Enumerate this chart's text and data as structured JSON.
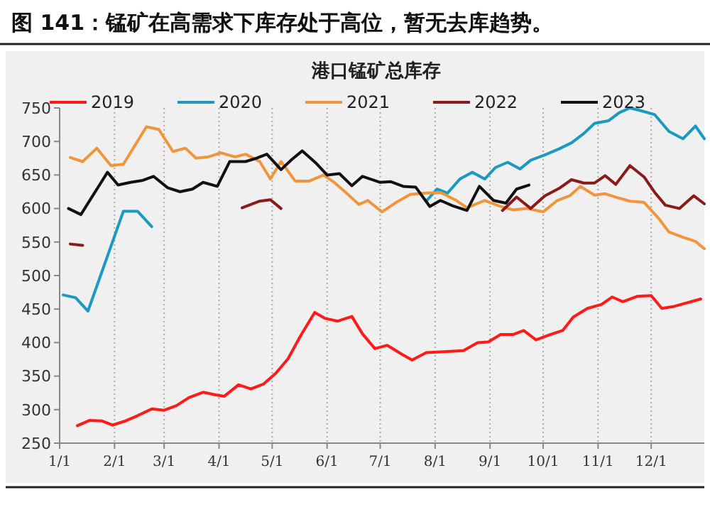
{
  "chart_data": {
    "type": "line",
    "title": "图 141：锰矿在高需求下库存处于高位，暂无去库趋势。",
    "subtitle": "港口锰矿总库存",
    "xlim": [
      "--01-01",
      "--12-31"
    ],
    "xticks": [
      {
        "value": "--01-01",
        "label": "1/1"
      },
      {
        "value": "--02-01",
        "label": "2/1"
      },
      {
        "value": "--03-01",
        "label": "3/1"
      },
      {
        "value": "--04-01",
        "label": "4/1"
      },
      {
        "value": "--05-01",
        "label": "5/1"
      },
      {
        "value": "--06-01",
        "label": "6/1"
      },
      {
        "value": "--07-01",
        "label": "7/1"
      },
      {
        "value": "--08-01",
        "label": "8/1"
      },
      {
        "value": "--09-01",
        "label": "9/1"
      },
      {
        "value": "--10-01",
        "label": "10/1"
      },
      {
        "value": "--11-01",
        "label": "11/1"
      },
      {
        "value": "--12-01",
        "label": "12/1"
      }
    ],
    "ylim": [
      250,
      750
    ],
    "yticks": [
      250,
      300,
      350,
      400,
      450,
      500,
      550,
      600,
      650,
      700,
      750
    ],
    "grid": "x",
    "legend": "top",
    "line_style": "solid",
    "marker": "none",
    "series": [
      {
        "name": "2019",
        "color": "#ff1a1a",
        "x": [
          "--01-11",
          "--01-18",
          "--01-25",
          "--01-31",
          "--02-07",
          "--02-14",
          "--02-22",
          "--03-01",
          "--03-08",
          "--03-15",
          "--03-23",
          "--03-30",
          "--04-04",
          "--04-12",
          "--04-19",
          "--04-26",
          "--05-03",
          "--05-10",
          "--05-17",
          "--05-25",
          "--05-31",
          "--06-07",
          "--06-15",
          "--06-21",
          "--06-28",
          "--07-05",
          "--07-13",
          "--07-19",
          "--07-27",
          "--08-04",
          "--08-17",
          "--08-25",
          "--08-31",
          "--09-07",
          "--09-14",
          "--09-20",
          "--09-27",
          "--10-05",
          "--10-12",
          "--10-18",
          "--10-26",
          "--11-03",
          "--11-09",
          "--11-15",
          "--11-23",
          "--12-01",
          "--12-07",
          "--12-14",
          "--12-29"
        ],
        "values": [
          276,
          284,
          283,
          277,
          283,
          291,
          301,
          299,
          306,
          318,
          326,
          322,
          320,
          337,
          331,
          338,
          354,
          376,
          410,
          445,
          436,
          432,
          439,
          413,
          391,
          396,
          383,
          374,
          385,
          386,
          388,
          400,
          401,
          412,
          412,
          418,
          404,
          412,
          418,
          438,
          451,
          457,
          468,
          461,
          469,
          470,
          451,
          454,
          465
        ]
      },
      {
        "name": "2020",
        "color": "#1a9ac0",
        "x": [
          "--01-03",
          "--01-10",
          "--01-17",
          "--02-06",
          "--02-14",
          "--02-22",
          "--05-01",
          "--07-27",
          "--08-02",
          "--08-08",
          "--08-15",
          "--08-22",
          "--08-29",
          "--09-04",
          "--09-11",
          "--09-18",
          "--09-24",
          "--10-02",
          "--10-10",
          "--10-17",
          "--10-24",
          "--10-30",
          "--11-07",
          "--11-13",
          "--11-19",
          "--11-25",
          "--12-03",
          "--12-11",
          "--12-19",
          "--12-26",
          "--12-31"
        ],
        "values": [
          471,
          467,
          447,
          596,
          596,
          573,
          null,
          611,
          629,
          623,
          644,
          654,
          644,
          661,
          669,
          659,
          672,
          680,
          689,
          698,
          712,
          727,
          731,
          743,
          750,
          746,
          740,
          715,
          704,
          723,
          704
        ]
      },
      {
        "name": "2021",
        "color": "#f0953b",
        "x": [
          "--01-07",
          "--01-14",
          "--01-22",
          "--01-30",
          "--02-06",
          "--02-19",
          "--02-26",
          "--03-06",
          "--03-13",
          "--03-19",
          "--03-26",
          "--04-02",
          "--04-10",
          "--04-16",
          "--04-24",
          "--04-30",
          "--05-06",
          "--05-14",
          "--05-22",
          "--05-30",
          "--06-05",
          "--06-12",
          "--06-19",
          "--06-24",
          "--07-02",
          "--07-10",
          "--07-18",
          "--07-26",
          "--08-04",
          "--08-13",
          "--08-19",
          "--08-29",
          "--09-06",
          "--09-14",
          "--09-22",
          "--10-01",
          "--10-09",
          "--10-16",
          "--10-22",
          "--10-30",
          "--11-05",
          "--11-11",
          "--11-19",
          "--11-27",
          "--12-05",
          "--12-11",
          "--12-19",
          "--12-26",
          "--12-31"
        ],
        "values": [
          676,
          670,
          690,
          664,
          666,
          722,
          718,
          685,
          690,
          675,
          677,
          683,
          677,
          681,
          670,
          644,
          670,
          641,
          641,
          650,
          639,
          623,
          606,
          612,
          595,
          609,
          621,
          623,
          624,
          612,
          601,
          612,
          604,
          598,
          600,
          595,
          612,
          619,
          633,
          620,
          622,
          617,
          611,
          609,
          586,
          565,
          557,
          551,
          540
        ]
      },
      {
        "name": "2022",
        "color": "#8b1a1a",
        "x": [
          "--01-07",
          "--01-14",
          "--03-02",
          "--04-14",
          "--04-24",
          "--04-30",
          "--05-06",
          "--07-10",
          "--09-08",
          "--09-16",
          "--09-24",
          "--10-02",
          "--10-10",
          "--10-17",
          "--10-24",
          "--10-30",
          "--11-05",
          "--11-11",
          "--11-19",
          "--11-27",
          "--12-03",
          "--12-09",
          "--12-17",
          "--12-25",
          "--12-31"
        ],
        "values": [
          547,
          545,
          null,
          601,
          611,
          613,
          600,
          null,
          597,
          617,
          600,
          619,
          630,
          643,
          638,
          638,
          649,
          636,
          664,
          647,
          624,
          605,
          600,
          619,
          607
        ]
      },
      {
        "name": "2023",
        "color": "#111111",
        "x": [
          "--01-06",
          "--01-13",
          "--01-28",
          "--02-03",
          "--02-10",
          "--02-17",
          "--02-23",
          "--03-03",
          "--03-10",
          "--03-17",
          "--03-23",
          "--03-31",
          "--04-07",
          "--04-16",
          "--04-22",
          "--04-28",
          "--05-06",
          "--05-12",
          "--05-18",
          "--05-26",
          "--06-01",
          "--06-08",
          "--06-15",
          "--06-21",
          "--07-01",
          "--07-07",
          "--07-14",
          "--07-21",
          "--07-29",
          "--08-04",
          "--08-11",
          "--08-19",
          "--08-26",
          "--09-03",
          "--09-10",
          "--09-16",
          "--09-23"
        ],
        "values": [
          600,
          591,
          654,
          635,
          639,
          642,
          648,
          631,
          625,
          629,
          639,
          633,
          670,
          670,
          675,
          681,
          658,
          673,
          686,
          667,
          650,
          652,
          634,
          648,
          639,
          640,
          633,
          632,
          603,
          612,
          604,
          597,
          633,
          612,
          608,
          629,
          635
        ]
      }
    ]
  }
}
